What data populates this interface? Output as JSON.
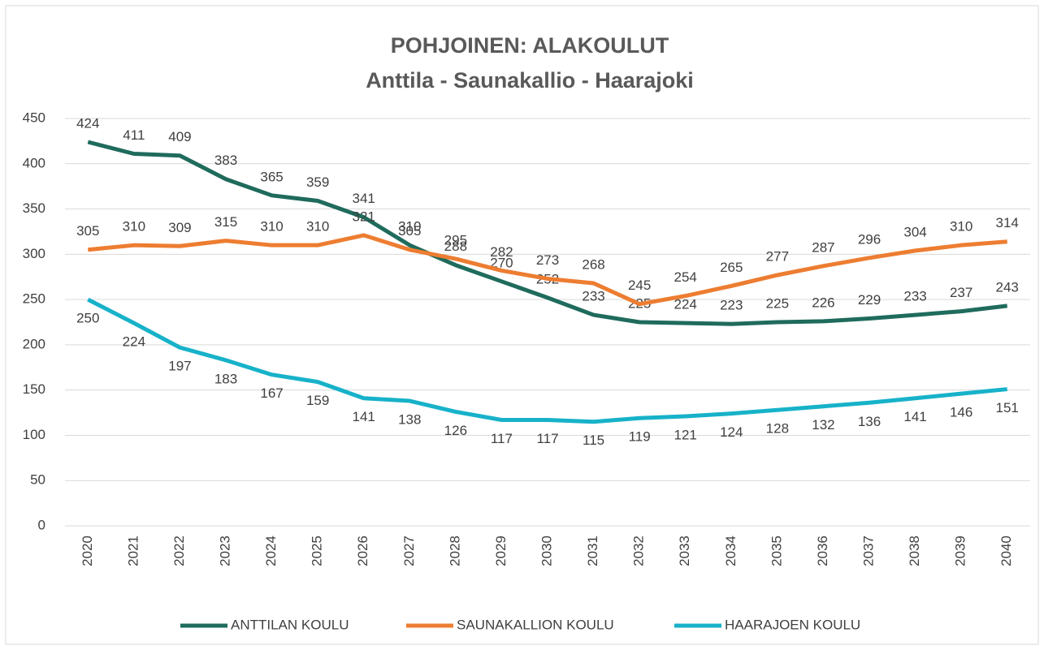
{
  "chart_data": {
    "type": "line",
    "title": "POHJOINEN: ALAKOULUT",
    "subtitle": "Anttila - Saunakallio - Haarajoki",
    "categories": [
      "2020",
      "2021",
      "2022",
      "2023",
      "2024",
      "2025",
      "2026",
      "2027",
      "2028",
      "2029",
      "2030",
      "2031",
      "2032",
      "2033",
      "2034",
      "2035",
      "2036",
      "2037",
      "2038",
      "2039",
      "2040"
    ],
    "series": [
      {
        "name": "ANTTILAN KOULU",
        "color": "#1f6b5c",
        "values": [
          424,
          411,
          409,
          383,
          365,
          359,
          341,
          310,
          288,
          270,
          252,
          233,
          225,
          224,
          223,
          225,
          226,
          229,
          233,
          237,
          243
        ]
      },
      {
        "name": "SAUNAKALLION KOULU",
        "color": "#ed7d31",
        "values": [
          305,
          310,
          309,
          315,
          310,
          310,
          321,
          305,
          295,
          282,
          273,
          268,
          245,
          254,
          265,
          277,
          287,
          296,
          304,
          310,
          314
        ]
      },
      {
        "name": "HAARAJOEN KOULU",
        "color": "#17b2c9",
        "values": [
          250,
          224,
          197,
          183,
          167,
          159,
          141,
          138,
          126,
          117,
          117,
          115,
          119,
          121,
          124,
          128,
          132,
          136,
          141,
          146,
          151
        ]
      }
    ],
    "ylim": [
      0,
      450
    ],
    "yticks": [
      0,
      50,
      100,
      150,
      200,
      250,
      300,
      350,
      400,
      450
    ],
    "grid": true,
    "legend": "bottom"
  }
}
